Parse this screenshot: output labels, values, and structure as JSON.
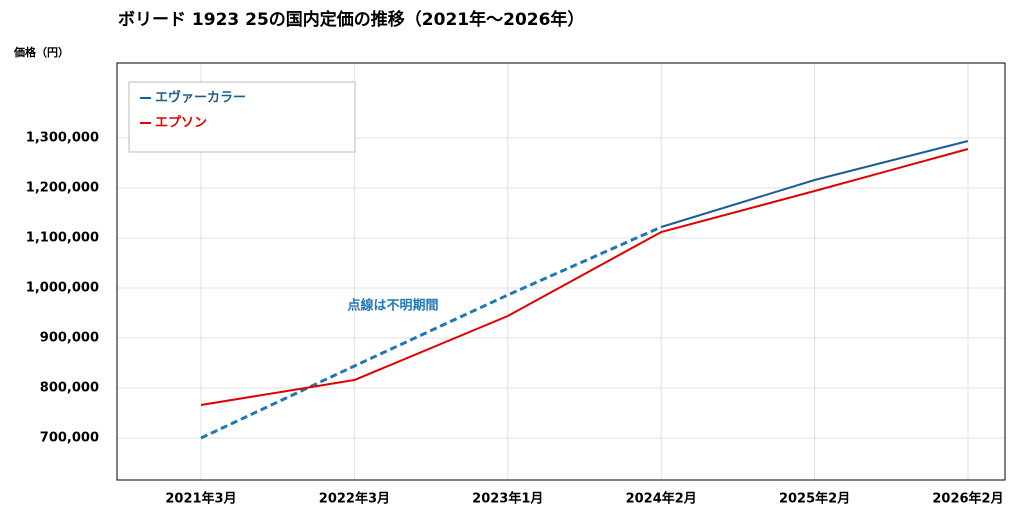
{
  "chart_data": {
    "type": "line",
    "title": "ボリード 1923 25の国内定価の推移（2021年～2026年）",
    "y_label": "価格（円）",
    "annotation": "点線は不明期間",
    "categories": [
      "2021年3月",
      "2022年3月",
      "2023年1月",
      "2024年2月",
      "2025年2月",
      "2026年2月"
    ],
    "series": [
      {
        "name": "エヴァーカラー",
        "color": "#1b5e94",
        "values": [
          700000,
          844000,
          986000,
          1122000,
          1216000,
          1294000
        ],
        "segment_styles": [
          "dashed",
          "dashed",
          "dashed",
          "solid",
          "solid"
        ]
      },
      {
        "name": "エプソン",
        "color": "#e00000",
        "values": [
          766000,
          816000,
          944000,
          1112000,
          1194000,
          1278000
        ],
        "segment_styles": [
          "solid",
          "solid",
          "solid",
          "solid",
          "solid"
        ]
      }
    ],
    "ylim": [
      616000,
      1450000
    ],
    "yticks": [
      {
        "value": 700000,
        "label": "700,000"
      },
      {
        "value": 800000,
        "label": "800,000"
      },
      {
        "value": 900000,
        "label": "900,000"
      },
      {
        "value": 1000000,
        "label": "1,000,000"
      },
      {
        "value": 1100000,
        "label": "1,100,000"
      },
      {
        "value": 1200000,
        "label": "1,200,000"
      },
      {
        "value": 1300000,
        "label": "1,300,000"
      }
    ],
    "grid": true,
    "legend": "top-left"
  }
}
